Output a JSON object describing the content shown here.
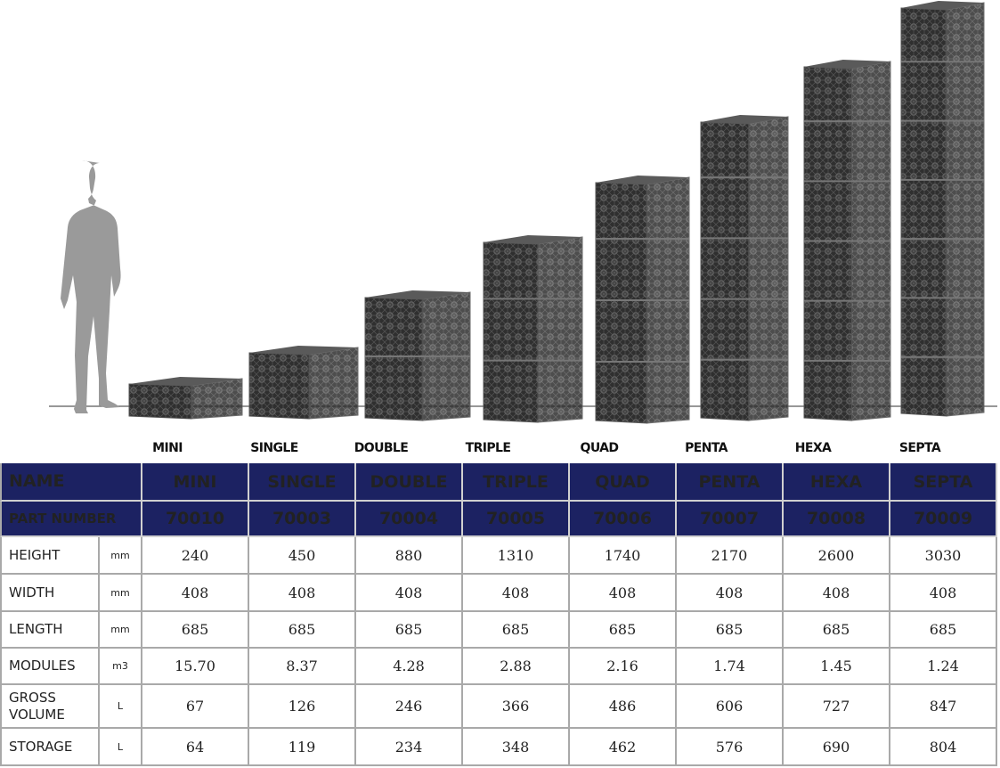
{
  "labels": [
    "MINI",
    "SINGLE",
    "DOUBLE",
    "TRIPLE",
    "QUAD",
    "PENTA",
    "HEXA",
    "SEPTA"
  ],
  "table": {
    "header": [
      "NAME",
      "MINI",
      "SINGLE",
      "DOUBLE",
      "TRIPLE",
      "QUAD",
      "PENTA",
      "HEXA",
      "SEPTA"
    ],
    "part_number": [
      "PART NUMBER",
      "70010",
      "70003",
      "70004",
      "70005",
      "70006",
      "70007",
      "70008",
      "70009"
    ],
    "rows": [
      {
        "name": "HEIGHT",
        "unit": "mm",
        "values": [
          "240",
          "450",
          "880",
          "1310",
          "1740",
          "2170",
          "2600",
          "3030"
        ]
      },
      {
        "name": "WIDTH",
        "unit": "mm",
        "values": [
          "408",
          "408",
          "408",
          "408",
          "408",
          "408",
          "408",
          "408"
        ]
      },
      {
        "name": "LENGTH",
        "unit": "mm",
        "values": [
          "685",
          "685",
          "685",
          "685",
          "685",
          "685",
          "685",
          "685"
        ]
      },
      {
        "name": "MODULES",
        "unit": "m3",
        "values": [
          "15.70",
          "8.37",
          "4.28",
          "2.88",
          "2.16",
          "1.74",
          "1.45",
          "1.24"
        ]
      },
      {
        "name": "GROSS VOLUME",
        "unit": "L",
        "values": [
          "67",
          "126",
          "246",
          "366",
          "486",
          "606",
          "727",
          "847"
        ]
      },
      {
        "name": "STORAGE",
        "unit": "L",
        "values": [
          "64",
          "119",
          "234",
          "348",
          "462",
          "576",
          "690",
          "804"
        ]
      }
    ]
  }
}
